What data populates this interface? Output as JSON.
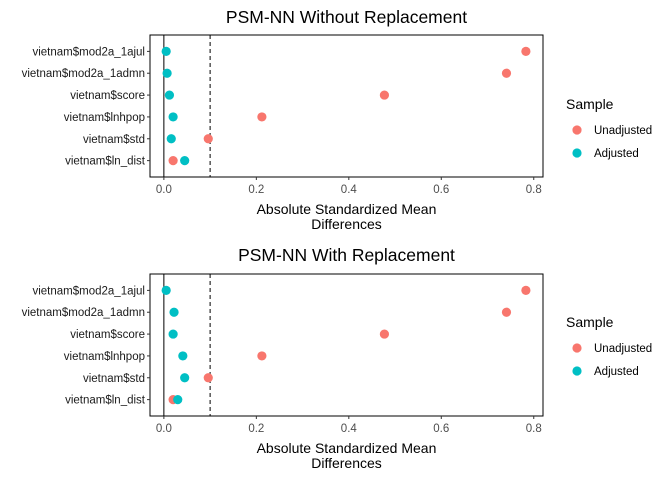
{
  "colors": {
    "unadjusted": "#F8766D",
    "adjusted": "#00BFC4"
  },
  "chart_data": [
    {
      "type": "scatter",
      "title": "PSM-NN Without Replacement",
      "xlabel": [
        "Absolute Standardized Mean",
        "Differences"
      ],
      "ylabel": "",
      "xlim": [
        -0.03,
        0.82
      ],
      "xticks": [
        "0.0",
        "0.2",
        "0.4",
        "0.6",
        "0.8"
      ],
      "threshold": 0.1,
      "grid": false,
      "categories": [
        "vietnam$mod2a_1ajul",
        "vietnam$mod2a_1admn",
        "vietnam$score",
        "vietnam$lnhpop",
        "vietnam$std",
        "vietnam$ln_dist"
      ],
      "legend": {
        "title": "Sample",
        "position": "right",
        "entries": [
          "Unadjusted",
          "Adjusted"
        ]
      },
      "series": [
        {
          "name": "Unadjusted",
          "values": [
            0.783,
            0.741,
            0.477,
            0.212,
            0.096,
            0.02
          ]
        },
        {
          "name": "Adjusted",
          "values": [
            0.005,
            0.007,
            0.012,
            0.02,
            0.016,
            0.045
          ]
        }
      ]
    },
    {
      "type": "scatter",
      "title": "PSM-NN With Replacement",
      "xlabel": [
        "Absolute Standardized Mean",
        "Differences"
      ],
      "ylabel": "",
      "xlim": [
        -0.03,
        0.82
      ],
      "xticks": [
        "0.0",
        "0.2",
        "0.4",
        "0.6",
        "0.8"
      ],
      "threshold": 0.1,
      "grid": false,
      "categories": [
        "vietnam$mod2a_1ajul",
        "vietnam$mod2a_1admn",
        "vietnam$score",
        "vietnam$lnhpop",
        "vietnam$std",
        "vietnam$ln_dist"
      ],
      "legend": {
        "title": "Sample",
        "position": "right",
        "entries": [
          "Unadjusted",
          "Adjusted"
        ]
      },
      "series": [
        {
          "name": "Unadjusted",
          "values": [
            0.783,
            0.741,
            0.477,
            0.212,
            0.096,
            0.02
          ]
        },
        {
          "name": "Adjusted",
          "values": [
            0.005,
            0.022,
            0.02,
            0.041,
            0.045,
            0.03
          ]
        }
      ]
    }
  ]
}
